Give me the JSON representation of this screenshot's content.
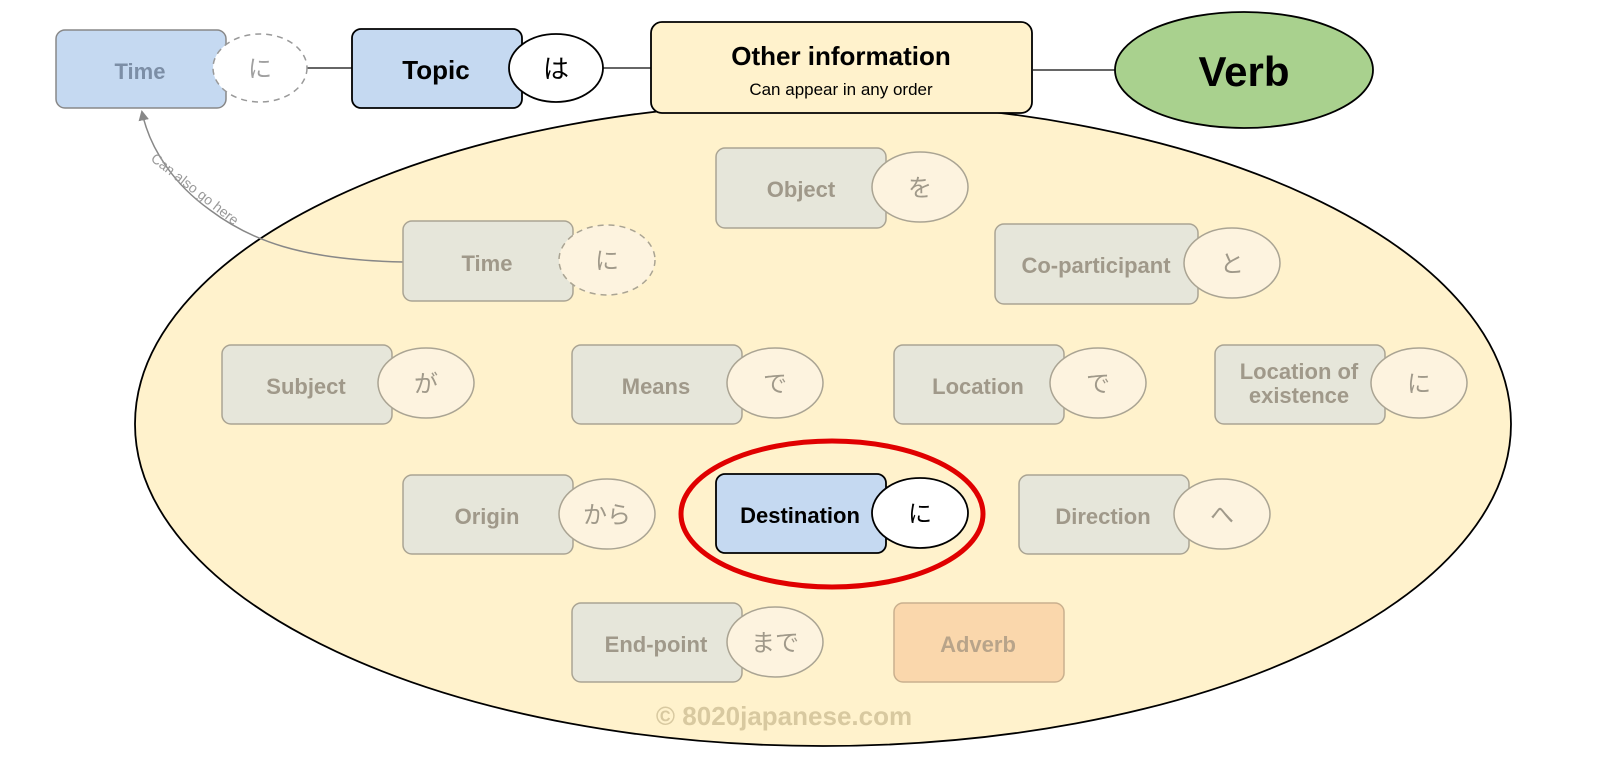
{
  "header": {
    "time": {
      "label": "Time",
      "particle": "に"
    },
    "topic": {
      "label": "Topic",
      "particle": "は"
    },
    "other": {
      "title": "Other information",
      "subtitle": "Can appear in any order"
    },
    "verb": {
      "label": "Verb"
    }
  },
  "arrow_note": "Can also go here",
  "items": {
    "object": {
      "label": "Object",
      "particle": "を"
    },
    "time": {
      "label": "Time",
      "particle": "に"
    },
    "coparticipant": {
      "label": "Co-participant",
      "particle": "と"
    },
    "subject": {
      "label": "Subject",
      "particle": "が"
    },
    "means": {
      "label": "Means",
      "particle": "で"
    },
    "location": {
      "label": "Location",
      "particle": "で"
    },
    "existence": {
      "label_line1": "Location of",
      "label_line2": "existence",
      "particle": "に"
    },
    "origin": {
      "label": "Origin",
      "particle": "から"
    },
    "destination": {
      "label": "Destination",
      "particle": "に"
    },
    "direction": {
      "label": "Direction",
      "particle": "へ"
    },
    "endpoint": {
      "label": "End-point",
      "particle": "まで"
    },
    "adverb": {
      "label": "Adverb"
    }
  },
  "copyright": "© 8020japanese.com",
  "colors": {
    "blue_box": "#c5d9f1",
    "grey_box": "#e6e6da",
    "particle_fill": "#fdf3df",
    "ellipse_fill": "#fff2cc",
    "verb_fill": "#a9d18e",
    "adverb_fill": "#fad7ac",
    "highlight": "#e00000",
    "muted_text": "#a0998a"
  }
}
